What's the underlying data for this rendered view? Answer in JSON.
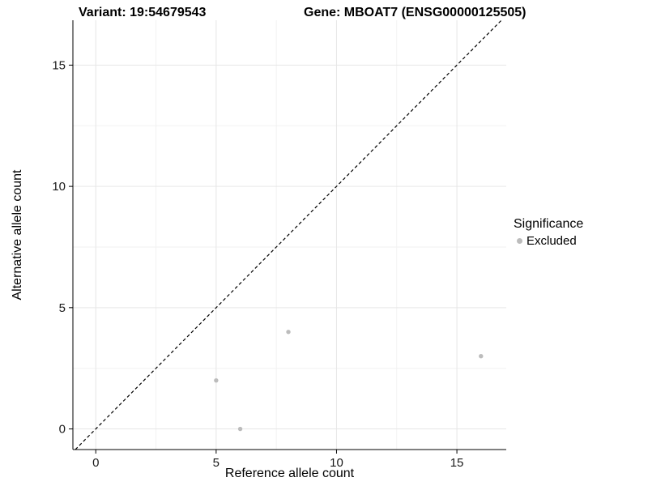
{
  "header": {
    "variant_title": "Variant: 19:54679543",
    "gene_title": "Gene: MBOAT7 (ENSG00000125505)"
  },
  "chart_data": {
    "type": "scatter",
    "title": "Variant: 19:54679543 — Gene: MBOAT7 (ENSG00000125505)",
    "xlabel": "Reference allele count",
    "ylabel": "Alternative allele count",
    "xlim": [
      -0.95,
      17.05
    ],
    "ylim": [
      -0.85,
      16.85
    ],
    "xticks": [
      0,
      5,
      10,
      15
    ],
    "yticks": [
      0,
      5,
      10,
      15
    ],
    "xminor": [
      2.5,
      7.5,
      12.5
    ],
    "yminor": [
      2.5,
      7.5,
      12.5
    ],
    "grid": true,
    "points": [
      {
        "x": 5,
        "y": 2,
        "series": "Excluded"
      },
      {
        "x": 6,
        "y": 0,
        "series": "Excluded"
      },
      {
        "x": 8,
        "y": 4,
        "series": "Excluded"
      },
      {
        "x": 16,
        "y": 3,
        "series": "Excluded"
      }
    ],
    "point_color": "#bcbcbc",
    "identity_line": {
      "style": "dashed",
      "from": -0.85,
      "to": 16.85,
      "color": "#000000",
      "dash": "4 3"
    },
    "legend": {
      "title": "Significance",
      "position": "right",
      "entries": [
        {
          "label": "Excluded",
          "color": "#bcbcbc"
        }
      ]
    },
    "colors": {
      "major_grid": "#e6e6e6",
      "minor_grid": "#f2f2f2",
      "axis": "#000000",
      "tick_label": "#1a1a1a"
    }
  }
}
